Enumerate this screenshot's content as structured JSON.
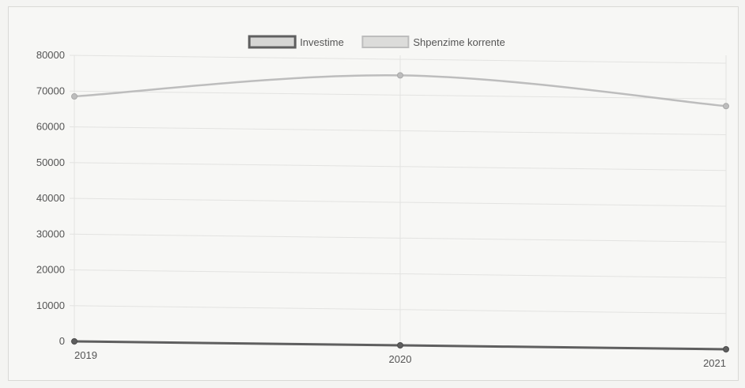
{
  "chart_data": {
    "type": "line",
    "title": "",
    "xlabel": "",
    "ylabel": "",
    "categories": [
      "2019",
      "2020",
      "2021"
    ],
    "ylim": [
      0,
      80000
    ],
    "yticks": [
      0,
      10000,
      20000,
      30000,
      40000,
      50000,
      60000,
      70000,
      80000
    ],
    "grid": true,
    "legend_position": "top-center",
    "series": [
      {
        "name": "Investime",
        "values": [
          0,
          0,
          0
        ],
        "color": "#5f5f5f"
      },
      {
        "name": "Shpenzime korrente",
        "values": [
          68500,
          75500,
          68000
        ],
        "color": "#bdbdbd"
      }
    ]
  }
}
